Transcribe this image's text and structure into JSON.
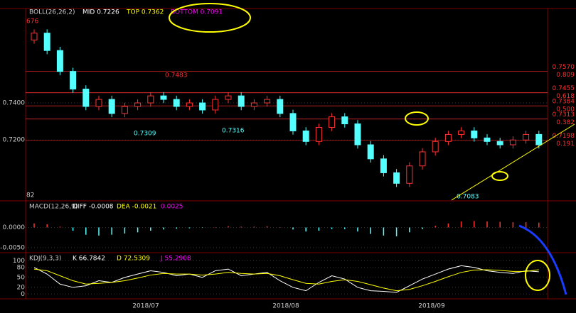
{
  "chart_data": [
    {
      "type": "candlestick",
      "title": "BOLL(26,26,2)",
      "indicators": [
        {
          "text": "MID 0.7226",
          "color": "#ffffff"
        },
        {
          "text": "TOP 0.7362",
          "color": "#ffff00"
        },
        {
          "text": "BOTTOM 0.7091",
          "color": "#ff00ff"
        }
      ],
      "open": [
        0.774,
        0.7777,
        0.7683,
        0.757,
        0.7475,
        0.7381,
        0.7419,
        0.7343,
        0.7381,
        0.74,
        0.7438,
        0.7419,
        0.7381,
        0.74,
        0.7362,
        0.7419,
        0.7438,
        0.7381,
        0.74,
        0.7419,
        0.7343,
        0.7249,
        0.7192,
        0.7268,
        0.7325,
        0.7287,
        0.7174,
        0.7098,
        0.7023,
        0.6966,
        0.706,
        0.7136,
        0.7192,
        0.723,
        0.7249,
        0.7211,
        0.7192,
        0.7174,
        0.72,
        0.723
      ],
      "high": [
        0.7797,
        0.7797,
        0.7703,
        0.759,
        0.7495,
        0.7439,
        0.7439,
        0.7401,
        0.742,
        0.7458,
        0.7458,
        0.7439,
        0.742,
        0.742,
        0.7439,
        0.7458,
        0.7458,
        0.742,
        0.7439,
        0.7439,
        0.7363,
        0.7269,
        0.7288,
        0.7345,
        0.7345,
        0.7307,
        0.7194,
        0.7118,
        0.7043,
        0.708,
        0.7156,
        0.7212,
        0.725,
        0.7269,
        0.7269,
        0.7231,
        0.7212,
        0.722,
        0.725,
        0.725
      ],
      "low": [
        0.772,
        0.7663,
        0.755,
        0.7455,
        0.7361,
        0.7361,
        0.7323,
        0.7323,
        0.7361,
        0.738,
        0.7399,
        0.7361,
        0.7361,
        0.7342,
        0.7342,
        0.7399,
        0.7361,
        0.7361,
        0.738,
        0.7323,
        0.7229,
        0.7172,
        0.7172,
        0.7248,
        0.7267,
        0.7154,
        0.7078,
        0.7003,
        0.6946,
        0.6946,
        0.704,
        0.7116,
        0.7172,
        0.721,
        0.7191,
        0.7172,
        0.7154,
        0.7154,
        0.718,
        0.7154
      ],
      "close": [
        0.7777,
        0.7683,
        0.757,
        0.7475,
        0.7381,
        0.7419,
        0.7343,
        0.7381,
        0.74,
        0.7438,
        0.7419,
        0.7381,
        0.74,
        0.7362,
        0.7419,
        0.7438,
        0.7381,
        0.74,
        0.7419,
        0.7343,
        0.7249,
        0.7192,
        0.7268,
        0.7325,
        0.7287,
        0.7174,
        0.7098,
        0.7023,
        0.6966,
        0.706,
        0.7136,
        0.7192,
        0.723,
        0.7249,
        0.7211,
        0.7192,
        0.7174,
        0.72,
        0.723,
        0.7174
      ],
      "up_color": "#ff3232",
      "down_color": "#54ffff",
      "ylim": [
        0.6879,
        0.7902
      ],
      "yticks": [
        {
          "value": 0.74,
          "label": "0.7400"
        },
        {
          "value": 0.72,
          "label": "0.7200"
        }
      ],
      "levels": [
        {
          "value": 0.757,
          "label": "0.7570",
          "ratio": "0.809"
        },
        {
          "value": 0.7455,
          "label": "0.7455",
          "ratio": "0.618"
        },
        {
          "value": 0.7384,
          "label": "0.7384",
          "ratio": "0.500"
        },
        {
          "value": 0.7313,
          "label": "0.7313",
          "ratio": "0.382"
        },
        {
          "value": 0.7198,
          "label": "0.7198",
          "ratio": "0.191"
        }
      ],
      "annotations": [
        "676",
        "0.7483",
        "0.7309",
        "0.7316",
        "0.7083",
        "82"
      ]
    },
    {
      "type": "bar",
      "title": "MACD(12,26,9)",
      "indicators": [
        {
          "text": "DIFF -0.0008",
          "color": "#ffffff"
        },
        {
          "text": "DEA -0.0021",
          "color": "#ffff00"
        },
        {
          "text": "0.0025",
          "color": "#ff00ff"
        }
      ],
      "values": [
        0.001,
        0.0008,
        0.0002,
        -0.0008,
        -0.0018,
        -0.002,
        -0.0018,
        -0.0015,
        -0.0012,
        -0.0008,
        -0.0005,
        -0.0003,
        -0.0002,
        -0.0001,
        0.0001,
        0.0003,
        0.0002,
        0.0002,
        0.0003,
        0.0001,
        -0.0005,
        -0.001,
        -0.0008,
        -0.0004,
        -0.0004,
        -0.001,
        -0.0016,
        -0.002,
        -0.0022,
        -0.0012,
        -0.0004,
        0.0004,
        0.001,
        0.0015,
        0.0016,
        0.0015,
        0.0014,
        0.0013,
        0.0013,
        0.0012
      ],
      "up_color": "#ff3232",
      "down_color": "#54ffff",
      "ylim": [
        -0.0059,
        0.00625
      ],
      "yticks": [
        {
          "value": 0,
          "label": "0.0000"
        },
        {
          "value": -0.005,
          "label": "-0.0050"
        }
      ]
    },
    {
      "type": "line",
      "title": "KDJ(9,3,3)",
      "indicators": [
        {
          "text": "K 66.7842",
          "color": "#ffffff"
        },
        {
          "text": "D 72.5309",
          "color": "#ffff00"
        },
        {
          "text": "J 55.2908",
          "color": "#ff00ff"
        }
      ],
      "series": [
        {
          "name": "K",
          "color": "#ffffff",
          "values": [
            80,
            60,
            30,
            20,
            25,
            40,
            35,
            50,
            60,
            70,
            65,
            55,
            60,
            50,
            70,
            75,
            55,
            60,
            65,
            40,
            20,
            10,
            35,
            55,
            45,
            20,
            10,
            8,
            5,
            25,
            45,
            60,
            75,
            85,
            80,
            70,
            65,
            62,
            70,
            67
          ]
        },
        {
          "name": "D",
          "color": "#ffff00",
          "values": [
            75,
            70,
            55,
            40,
            30,
            32,
            35,
            40,
            48,
            57,
            62,
            60,
            60,
            57,
            60,
            65,
            62,
            60,
            62,
            55,
            43,
            32,
            30,
            38,
            43,
            38,
            28,
            18,
            10,
            14,
            25,
            38,
            52,
            65,
            72,
            73,
            71,
            68,
            68,
            73
          ]
        }
      ],
      "ylim": [
        -10,
        120
      ],
      "yticks": [
        100,
        80,
        50,
        20,
        0
      ],
      "x_labels": [
        "2018/07",
        "2018/08",
        "2018/09"
      ]
    }
  ]
}
